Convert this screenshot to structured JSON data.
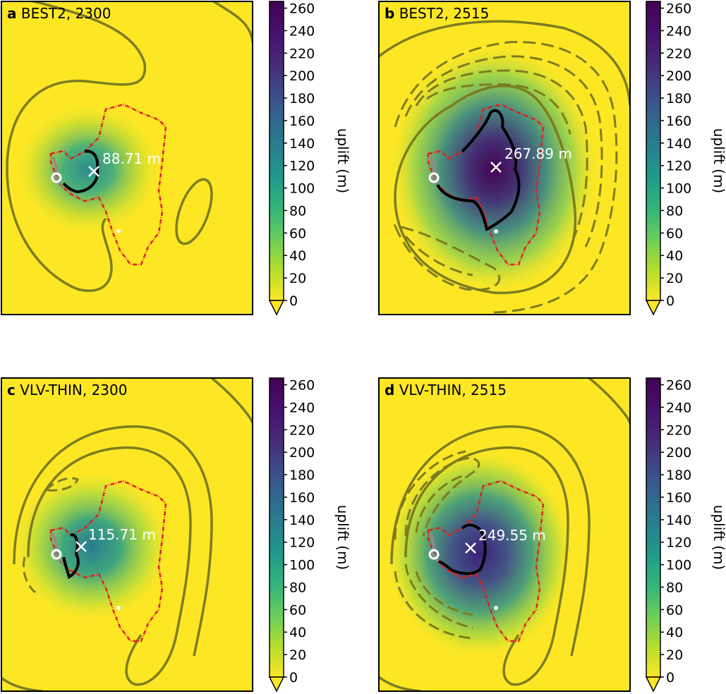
{
  "chart_data": [
    {
      "type": "heatmap",
      "panel_letter": "a",
      "title": "BEST2, 2300",
      "max_label": "88.71 m",
      "max_value": 88.71,
      "colorbar": {
        "label": "uplift (m)",
        "ticks": [
          0,
          20,
          40,
          60,
          80,
          100,
          120,
          140,
          160,
          180,
          200,
          220,
          240,
          260
        ],
        "range": [
          0,
          266
        ],
        "colormap": "viridis_r",
        "extend": "min"
      }
    },
    {
      "type": "heatmap",
      "panel_letter": "b",
      "title": "BEST2, 2515",
      "max_label": "267.89 m",
      "max_value": 267.89,
      "colorbar": {
        "label": "uplift (m)",
        "ticks": [
          0,
          20,
          40,
          60,
          80,
          100,
          120,
          140,
          160,
          180,
          200,
          220,
          240,
          260
        ],
        "range": [
          0,
          266
        ],
        "colormap": "viridis_r",
        "extend": "min"
      }
    },
    {
      "type": "heatmap",
      "panel_letter": "c",
      "title": "VLV-THIN, 2300",
      "max_label": "115.71 m",
      "max_value": 115.71,
      "colorbar": {
        "label": "uplift (m)",
        "ticks": [
          0,
          20,
          40,
          60,
          80,
          100,
          120,
          140,
          160,
          180,
          200,
          220,
          240,
          260
        ],
        "range": [
          0,
          266
        ],
        "colormap": "viridis_r",
        "extend": "min"
      }
    },
    {
      "type": "heatmap",
      "panel_letter": "d",
      "title": "VLV-THIN, 2515",
      "max_label": "249.55 m",
      "max_value": 249.55,
      "colorbar": {
        "label": "uplift (m)",
        "ticks": [
          0,
          20,
          40,
          60,
          80,
          100,
          120,
          140,
          160,
          180,
          200,
          220,
          240,
          260
        ],
        "range": [
          0,
          266
        ],
        "colormap": "viridis_r",
        "extend": "min"
      }
    }
  ],
  "colors": {
    "contour": "#7d7d1e",
    "outline": "#e0201b",
    "grounding_line": "#000000",
    "grey_line": "#8c8c8c",
    "marker": "#ffffff",
    "background_field": "#fde725"
  }
}
